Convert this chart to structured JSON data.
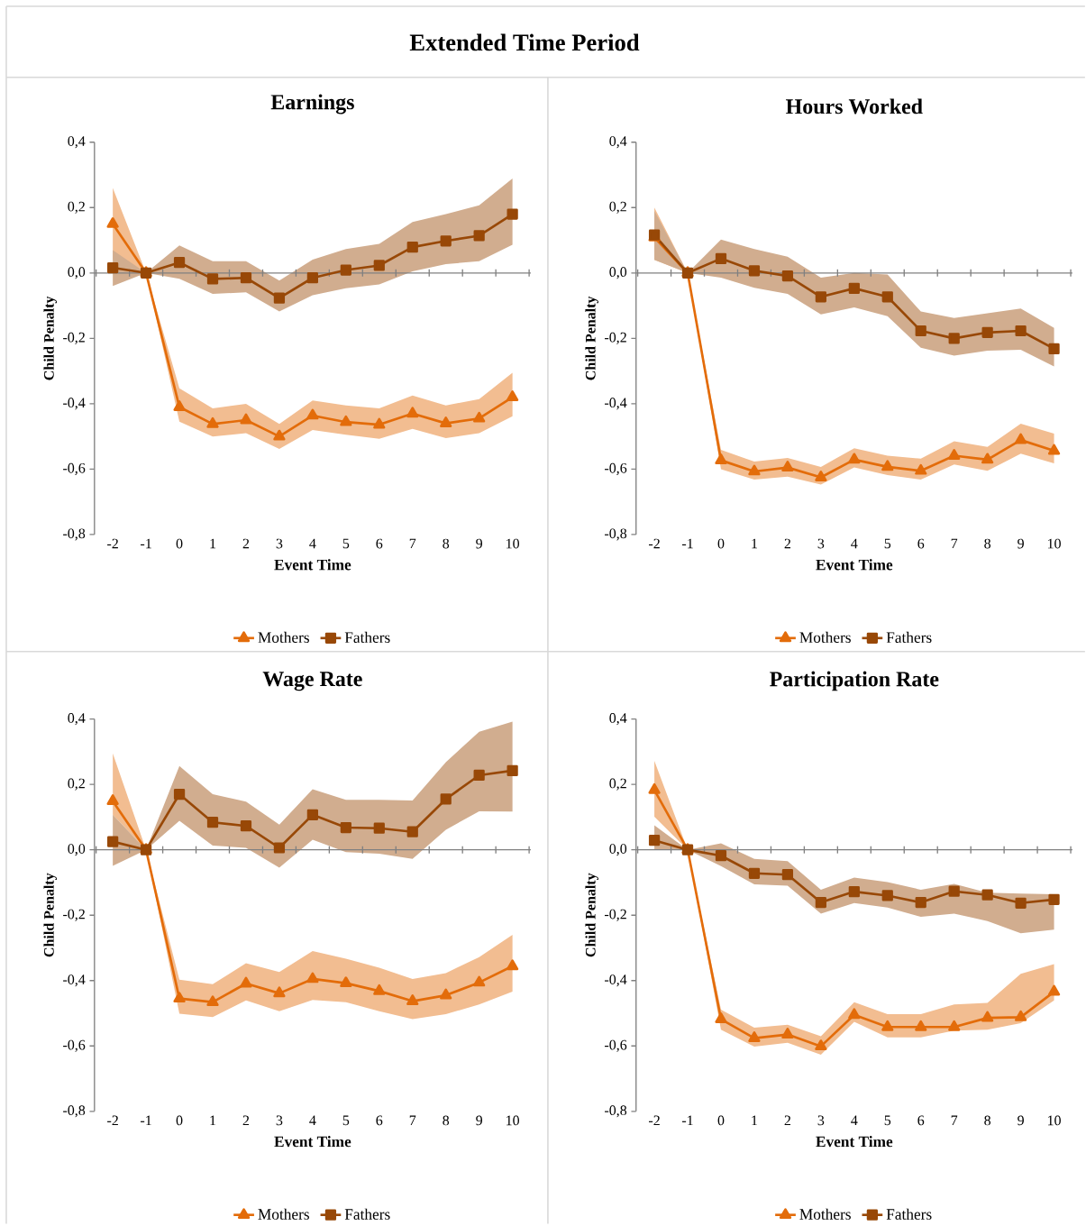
{
  "chart_data": [
    {
      "type": "other",
      "title": "Extended Time Period"
    },
    {
      "type": "line",
      "title": "Earnings",
      "xlabel": "Event Time",
      "ylabel": "Child Penalty",
      "legend": "bottom",
      "categories": [
        "-2",
        "-1",
        "0",
        "1",
        "2",
        "3",
        "4",
        "5",
        "6",
        "7",
        "8",
        "9",
        "10"
      ],
      "ylim": [
        -0.8,
        0.4
      ],
      "yticks": [
        {
          "value": -0.8,
          "label": "-0,8"
        },
        {
          "value": -0.6,
          "label": "-0,6"
        },
        {
          "value": -0.4,
          "label": "-0,4"
        },
        {
          "value": -0.2,
          "label": "-0,2"
        },
        {
          "value": 0,
          "label": "0,0"
        },
        {
          "value": 0.2,
          "label": "0,2"
        },
        {
          "value": 0.4,
          "label": "0,4"
        }
      ],
      "series": [
        {
          "name": "Mothers",
          "color": "#e36c0a",
          "marker": "triangle",
          "values": [
            0.15,
            0,
            -0.41,
            -0.462,
            -0.45,
            -0.5,
            -0.436,
            -0.456,
            -0.464,
            -0.43,
            -0.46,
            -0.445,
            -0.38
          ],
          "lower": [
            0.04,
            0,
            -0.455,
            -0.5,
            -0.49,
            -0.538,
            -0.48,
            -0.495,
            -0.507,
            -0.477,
            -0.505,
            -0.49,
            -0.438
          ],
          "upper": [
            0.26,
            0,
            -0.353,
            -0.414,
            -0.4,
            -0.462,
            -0.39,
            -0.405,
            -0.414,
            -0.375,
            -0.405,
            -0.386,
            -0.305
          ]
        },
        {
          "name": "Fathers",
          "color": "#984807",
          "marker": "square",
          "values": [
            0.016,
            0,
            0.032,
            -0.018,
            -0.015,
            -0.077,
            -0.015,
            0.009,
            0.023,
            0.079,
            0.098,
            0.114,
            0.18
          ],
          "lower": [
            -0.04,
            0,
            -0.018,
            -0.064,
            -0.059,
            -0.118,
            -0.068,
            -0.047,
            -0.035,
            0.005,
            0.027,
            0.036,
            0.086
          ],
          "upper": [
            0.07,
            0,
            0.084,
            0.036,
            0.036,
            -0.023,
            0.041,
            0.073,
            0.089,
            0.156,
            0.18,
            0.207,
            0.289
          ]
        }
      ]
    },
    {
      "type": "line",
      "title": "Hours Worked",
      "xlabel": "Event Time",
      "ylabel": "Child Penalty",
      "legend": "bottom",
      "categories": [
        "-2",
        "-1",
        "0",
        "1",
        "2",
        "3",
        "4",
        "5",
        "6",
        "7",
        "8",
        "9",
        "10"
      ],
      "ylim": [
        -0.8,
        0.4
      ],
      "yticks": [
        {
          "value": -0.8,
          "label": "-0,8"
        },
        {
          "value": -0.6,
          "label": "-0,6"
        },
        {
          "value": -0.4,
          "label": "-0,4"
        },
        {
          "value": -0.2,
          "label": "-0,2"
        },
        {
          "value": 0,
          "label": "0,0"
        },
        {
          "value": 0.2,
          "label": "0,2"
        },
        {
          "value": 0.4,
          "label": "0,4"
        }
      ],
      "series": [
        {
          "name": "Mothers",
          "color": "#e36c0a",
          "marker": "triangle",
          "values": [
            0.109,
            0,
            -0.573,
            -0.607,
            -0.595,
            -0.625,
            -0.571,
            -0.593,
            -0.605,
            -0.559,
            -0.571,
            -0.511,
            -0.544
          ],
          "lower": [
            0.04,
            0,
            -0.6,
            -0.632,
            -0.623,
            -0.647,
            -0.595,
            -0.618,
            -0.632,
            -0.586,
            -0.605,
            -0.553,
            -0.582
          ],
          "upper": [
            0.2,
            0,
            -0.541,
            -0.577,
            -0.566,
            -0.593,
            -0.536,
            -0.559,
            -0.568,
            -0.515,
            -0.532,
            -0.461,
            -0.491
          ]
        },
        {
          "name": "Fathers",
          "color": "#984807",
          "marker": "square",
          "values": [
            0.116,
            0,
            0.044,
            0.007,
            -0.009,
            -0.073,
            -0.047,
            -0.073,
            -0.177,
            -0.2,
            -0.182,
            -0.177,
            -0.232
          ],
          "lower": [
            0.04,
            0,
            -0.014,
            -0.045,
            -0.064,
            -0.127,
            -0.105,
            -0.132,
            -0.229,
            -0.253,
            -0.238,
            -0.235,
            -0.286
          ],
          "upper": [
            0.19,
            0,
            0.102,
            0.073,
            0.05,
            -0.014,
            0,
            -0.005,
            -0.118,
            -0.138,
            -0.123,
            -0.109,
            -0.168
          ]
        }
      ]
    },
    {
      "type": "line",
      "title": "Wage Rate",
      "xlabel": "Event Time",
      "ylabel": "Child Penalty",
      "legend": "bottom",
      "categories": [
        "-2",
        "-1",
        "0",
        "1",
        "2",
        "3",
        "4",
        "5",
        "6",
        "7",
        "8",
        "9",
        "10"
      ],
      "ylim": [
        -0.8,
        0.4
      ],
      "yticks": [
        {
          "value": -0.8,
          "label": "-0,8"
        },
        {
          "value": -0.6,
          "label": "-0,6"
        },
        {
          "value": -0.4,
          "label": "-0,4"
        },
        {
          "value": -0.2,
          "label": "-0,2"
        },
        {
          "value": 0,
          "label": "0,0"
        },
        {
          "value": 0.2,
          "label": "0,2"
        },
        {
          "value": 0.4,
          "label": "0,4"
        }
      ],
      "series": [
        {
          "name": "Mothers",
          "color": "#e36c0a",
          "marker": "triangle",
          "values": [
            0.149,
            0,
            -0.455,
            -0.466,
            -0.409,
            -0.439,
            -0.395,
            -0.408,
            -0.432,
            -0.463,
            -0.445,
            -0.406,
            -0.356
          ],
          "lower": [
            0.107,
            0,
            -0.501,
            -0.512,
            -0.461,
            -0.494,
            -0.459,
            -0.466,
            -0.494,
            -0.518,
            -0.503,
            -0.473,
            -0.434
          ],
          "upper": [
            0.295,
            0,
            -0.397,
            -0.411,
            -0.347,
            -0.374,
            -0.31,
            -0.333,
            -0.361,
            -0.395,
            -0.377,
            -0.328,
            -0.26
          ]
        },
        {
          "name": "Fathers",
          "color": "#984807",
          "marker": "square",
          "values": [
            0.025,
            0,
            0.17,
            0.084,
            0.073,
            0.006,
            0.107,
            0.068,
            0.066,
            0.055,
            0.155,
            0.228,
            0.242
          ],
          "lower": [
            -0.049,
            0,
            0.089,
            0.013,
            0.006,
            -0.055,
            0.031,
            -0.007,
            -0.012,
            -0.028,
            0.061,
            0.118,
            0.117
          ],
          "upper": [
            0.107,
            0,
            0.256,
            0.17,
            0.147,
            0.077,
            0.185,
            0.153,
            0.153,
            0.151,
            0.268,
            0.361,
            0.392
          ]
        }
      ]
    },
    {
      "type": "line",
      "title": "Participation Rate",
      "xlabel": "Event Time",
      "ylabel": "Child Penalty",
      "legend": "bottom",
      "categories": [
        "-2",
        "-1",
        "0",
        "1",
        "2",
        "3",
        "4",
        "5",
        "6",
        "7",
        "8",
        "9",
        "10"
      ],
      "ylim": [
        -0.8,
        0.4
      ],
      "yticks": [
        {
          "value": -0.8,
          "label": "-0,8"
        },
        {
          "value": -0.6,
          "label": "-0,6"
        },
        {
          "value": -0.4,
          "label": "-0,4"
        },
        {
          "value": -0.2,
          "label": "-0,2"
        },
        {
          "value": 0,
          "label": "0,0"
        },
        {
          "value": 0.2,
          "label": "0,2"
        },
        {
          "value": 0.4,
          "label": "0,4"
        }
      ],
      "series": [
        {
          "name": "Mothers",
          "color": "#e36c0a",
          "marker": "triangle",
          "values": [
            0.183,
            0,
            -0.518,
            -0.576,
            -0.565,
            -0.601,
            -0.505,
            -0.542,
            -0.542,
            -0.542,
            -0.514,
            -0.512,
            -0.434
          ],
          "lower": [
            0.101,
            0,
            -0.55,
            -0.602,
            -0.59,
            -0.627,
            -0.526,
            -0.574,
            -0.574,
            -0.553,
            -0.55,
            -0.53,
            -0.461
          ],
          "upper": [
            0.272,
            0,
            -0.489,
            -0.544,
            -0.535,
            -0.57,
            -0.466,
            -0.503,
            -0.503,
            -0.473,
            -0.468,
            -0.379,
            -0.35
          ]
        },
        {
          "name": "Fathers",
          "color": "#984807",
          "marker": "square",
          "values": [
            0.029,
            0,
            -0.018,
            -0.072,
            -0.076,
            -0.161,
            -0.128,
            -0.14,
            -0.161,
            -0.127,
            -0.138,
            -0.163,
            -0.152
          ],
          "lower": [
            0.002,
            0,
            -0.05,
            -0.106,
            -0.11,
            -0.195,
            -0.163,
            -0.177,
            -0.205,
            -0.195,
            -0.218,
            -0.255,
            -0.244
          ],
          "upper": [
            0.075,
            0,
            0.02,
            -0.028,
            -0.035,
            -0.122,
            -0.085,
            -0.099,
            -0.122,
            -0.104,
            -0.131,
            -0.134,
            -0.136
          ]
        }
      ]
    }
  ]
}
